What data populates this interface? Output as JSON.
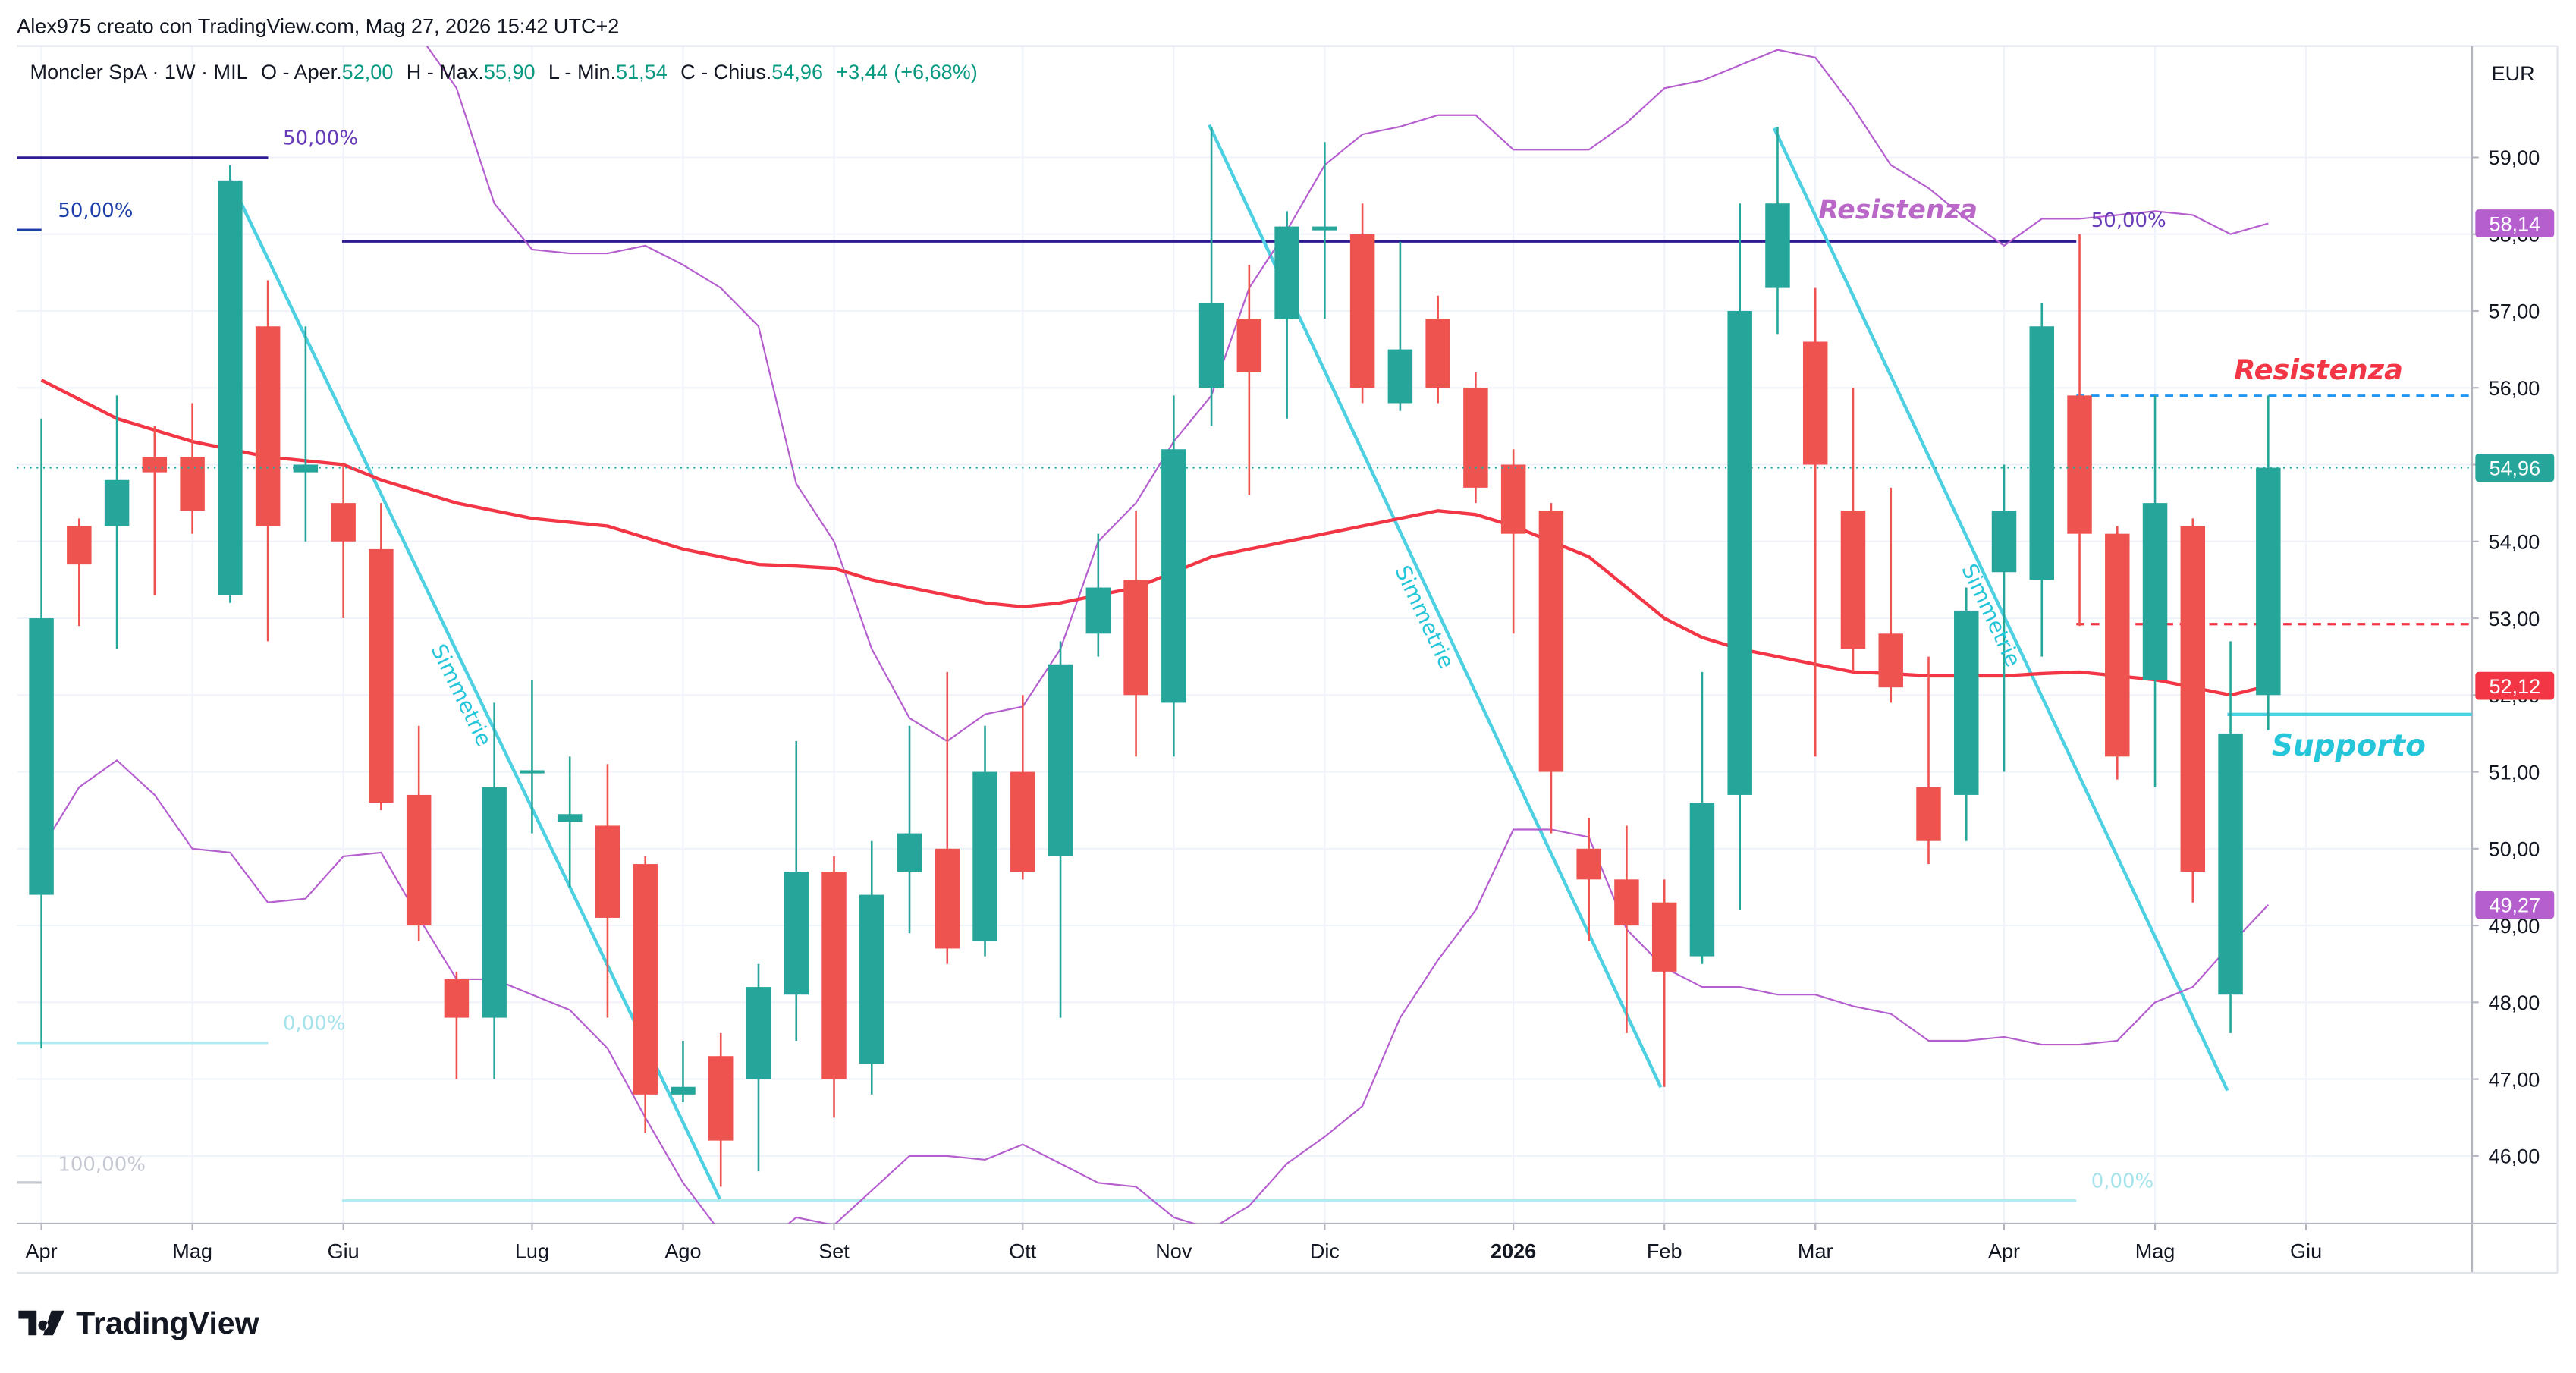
{
  "chart_data": {
    "type": "candlestick",
    "credit": "Alex975 creato con TradingView.com, Mag 27, 2026 15:42 UTC+2",
    "title": "Moncler SpA · 1W · MIL",
    "legend": [
      {
        "label": "O - Aper.",
        "value": "52,00"
      },
      {
        "label": "H - Max.",
        "value": "55,90"
      },
      {
        "label": "L - Min.",
        "value": "51,54"
      },
      {
        "label": "C - Chius.",
        "value": "54,96"
      }
    ],
    "change": "+3,44 (+6,68%)",
    "currency": "EUR",
    "brand": "TradingView",
    "candles": {
      "up_color": "#26a69a",
      "down_color": "#ef5350",
      "open": [
        49.4,
        54.2,
        54.2,
        55.1,
        55.1,
        53.3,
        56.8,
        54.9,
        54.5,
        53.9,
        50.7,
        48.3,
        47.8,
        50.98,
        50.35,
        50.3,
        49.8,
        46.8,
        47.3,
        47.0,
        48.1,
        49.7,
        47.2,
        49.7,
        50.0,
        48.8,
        51.0,
        49.9,
        52.8,
        53.5,
        51.9,
        56.0,
        56.9,
        56.9,
        58.05,
        58.0,
        55.8,
        56.9,
        56.0,
        55.0,
        54.4,
        50.0,
        49.6,
        49.3,
        48.6,
        50.7,
        57.3,
        56.6,
        54.4,
        52.8,
        50.8,
        50.7,
        53.6,
        53.5,
        55.9,
        54.1,
        52.2,
        54.2,
        48.1,
        52.0
      ],
      "high": [
        55.6,
        54.3,
        55.9,
        55.5,
        55.8,
        58.9,
        57.4,
        56.8,
        55.0,
        54.5,
        51.6,
        48.4,
        51.9,
        52.2,
        51.2,
        51.1,
        49.9,
        47.5,
        47.6,
        48.5,
        51.4,
        49.9,
        50.1,
        51.6,
        52.3,
        51.6,
        52.0,
        52.7,
        54.1,
        54.4,
        55.9,
        59.4,
        57.6,
        58.3,
        59.2,
        58.4,
        57.9,
        57.2,
        56.2,
        55.2,
        54.5,
        50.4,
        50.3,
        49.6,
        52.3,
        58.4,
        59.4,
        57.3,
        56.0,
        54.7,
        52.5,
        53.4,
        55.0,
        57.1,
        58.0,
        54.2,
        55.9,
        54.3,
        52.7,
        55.9
      ],
      "low": [
        47.4,
        52.9,
        52.6,
        53.3,
        54.1,
        53.2,
        52.7,
        54.0,
        53.0,
        50.5,
        48.8,
        47.0,
        47.0,
        50.2,
        49.5,
        47.8,
        46.3,
        46.7,
        45.6,
        45.8,
        47.5,
        46.5,
        46.8,
        48.9,
        48.5,
        48.6,
        49.6,
        47.8,
        52.5,
        51.2,
        51.2,
        55.5,
        54.6,
        55.6,
        56.9,
        55.8,
        55.7,
        55.8,
        54.5,
        52.8,
        50.2,
        48.8,
        47.6,
        46.9,
        48.5,
        49.2,
        56.7,
        51.2,
        52.3,
        51.9,
        49.8,
        50.1,
        51.0,
        52.5,
        52.9,
        50.9,
        50.8,
        49.3,
        47.6,
        51.54
      ],
      "close": [
        53.0,
        53.7,
        54.8,
        54.9,
        54.4,
        58.7,
        54.2,
        55.0,
        54.0,
        50.6,
        49.0,
        47.8,
        50.8,
        51.02,
        50.45,
        49.1,
        46.8,
        46.9,
        46.2,
        48.2,
        49.7,
        47.0,
        49.4,
        50.2,
        48.7,
        51.0,
        49.7,
        52.4,
        53.4,
        52.0,
        55.2,
        57.1,
        56.2,
        58.1,
        58.1,
        56.0,
        56.5,
        56.0,
        54.7,
        54.1,
        51.0,
        49.6,
        49.0,
        48.4,
        50.6,
        57.0,
        58.4,
        55.0,
        52.6,
        52.1,
        50.1,
        53.1,
        54.4,
        56.8,
        54.1,
        51.2,
        54.5,
        49.7,
        51.5,
        54.96
      ],
      "last_label": "54,96"
    },
    "moving_average": {
      "color": "#f23645",
      "value_label": "52,12",
      "values": [
        56.1,
        55.85,
        55.6,
        55.45,
        55.3,
        55.2,
        55.1,
        55.05,
        55.0,
        54.8,
        54.65,
        54.5,
        54.4,
        54.3,
        54.25,
        54.2,
        54.05,
        53.9,
        53.8,
        53.7,
        53.68,
        53.65,
        53.5,
        53.4,
        53.3,
        53.2,
        53.15,
        53.2,
        53.3,
        53.4,
        53.6,
        53.8,
        53.9,
        54.0,
        54.1,
        54.2,
        54.3,
        54.4,
        54.35,
        54.2,
        54.0,
        53.8,
        53.4,
        53.0,
        52.75,
        52.6,
        52.5,
        52.4,
        52.3,
        52.28,
        52.25,
        52.25,
        52.25,
        52.28,
        52.3,
        52.25,
        52.2,
        52.1,
        52.0,
        52.12
      ]
    },
    "upper_band": {
      "color": "#b55fcf",
      "value_label": "58,14",
      "values": [
        null,
        null,
        null,
        null,
        null,
        null,
        null,
        null,
        null,
        null,
        60.6,
        59.9,
        58.4,
        57.8,
        57.75,
        57.75,
        57.85,
        57.6,
        57.3,
        56.8,
        54.75,
        54.0,
        52.6,
        51.7,
        51.4,
        51.75,
        51.85,
        52.6,
        54.0,
        54.5,
        55.3,
        55.9,
        57.3,
        58.05,
        58.9,
        59.3,
        59.4,
        59.55,
        59.55,
        59.1,
        59.1,
        59.1,
        59.45,
        59.9,
        60.0,
        60.2,
        60.4,
        60.3,
        59.65,
        58.9,
        58.6,
        58.2,
        57.85,
        58.2,
        58.2,
        58.25,
        58.3,
        58.25,
        58.0,
        58.14
      ]
    },
    "lower_band": {
      "color": "#b55fcf",
      "value_label": "49,27",
      "values": [
        50.0,
        50.8,
        51.15,
        50.7,
        50.0,
        49.95,
        49.3,
        49.35,
        49.9,
        49.95,
        49.1,
        48.3,
        48.3,
        48.1,
        47.9,
        47.4,
        46.5,
        45.65,
        45.0,
        44.8,
        45.2,
        45.1,
        45.55,
        46.0,
        46.0,
        45.95,
        46.15,
        45.9,
        45.65,
        45.6,
        45.2,
        45.05,
        45.35,
        45.9,
        46.25,
        46.65,
        47.8,
        48.55,
        49.2,
        50.25,
        50.25,
        50.15,
        48.95,
        48.45,
        48.2,
        48.2,
        48.1,
        48.1,
        47.95,
        47.85,
        47.5,
        47.5,
        47.55,
        47.45,
        47.45,
        47.5,
        48.0,
        48.2,
        48.75,
        49.27
      ]
    },
    "xlim": [
      -0.65,
      64.4
    ],
    "xticks": [
      {
        "value": 0,
        "label": "Apr"
      },
      {
        "value": 4,
        "label": "Mag"
      },
      {
        "value": 8,
        "label": "Giu"
      },
      {
        "value": 13,
        "label": "Lug"
      },
      {
        "value": 17,
        "label": "Ago"
      },
      {
        "value": 21,
        "label": "Set"
      },
      {
        "value": 26,
        "label": "Ott"
      },
      {
        "value": 30,
        "label": "Nov"
      },
      {
        "value": 34,
        "label": "Dic"
      },
      {
        "value": 39,
        "label": "2026",
        "bold": true
      },
      {
        "value": 43,
        "label": "Feb"
      },
      {
        "value": 47,
        "label": "Mar"
      },
      {
        "value": 52,
        "label": "Apr"
      },
      {
        "value": 56,
        "label": "Mag"
      },
      {
        "value": 60,
        "label": "Giu"
      }
    ],
    "ylim": [
      45.12,
      60.45
    ],
    "yticks": [
      {
        "value": 46,
        "label": "46,00"
      },
      {
        "value": 47,
        "label": "47,00"
      },
      {
        "value": 48,
        "label": "48,00"
      },
      {
        "value": 49,
        "label": "49,00"
      },
      {
        "value": 50,
        "label": "50,00"
      },
      {
        "value": 51,
        "label": "51,00"
      },
      {
        "value": 52,
        "label": "52,00"
      },
      {
        "value": 53,
        "label": "53,00"
      },
      {
        "value": 54,
        "label": "54,00"
      },
      {
        "value": 55,
        "label": "55,00"
      },
      {
        "value": 56,
        "label": "56,00"
      },
      {
        "value": 57,
        "label": "57,00"
      },
      {
        "value": 58,
        "label": "58,00"
      },
      {
        "value": 59,
        "label": "59,00"
      }
    ],
    "grid": true,
    "annotations": {
      "fib_labels": [
        "50,00%",
        "50,00%",
        "0,00%",
        "100,00%",
        "50,00%",
        "0,00%"
      ],
      "simmetrie": [
        "Simmetrie",
        "Simmetrie",
        "Simmetrie"
      ],
      "resistenza": [
        "Resistenza",
        "Resistenza"
      ],
      "supporto": "Supporto"
    }
  }
}
